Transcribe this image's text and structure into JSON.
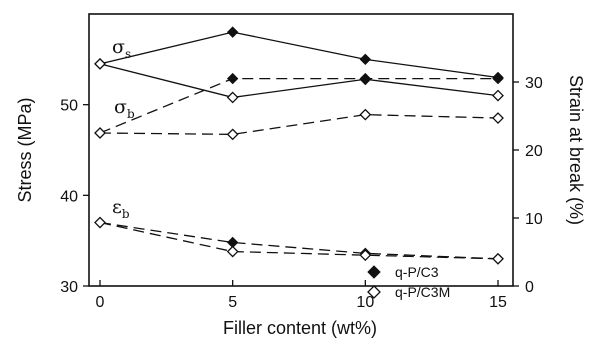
{
  "chart_data": {
    "type": "line",
    "xlabel": "Filler content  (wt%)",
    "ylabel_left": "Stress (MPa)",
    "ylabel_right": "Strain  at  break (%)",
    "x": [
      0,
      5,
      10,
      15
    ],
    "xlim": [
      0,
      15
    ],
    "x_ticks": [
      "0",
      "5",
      "10",
      "15"
    ],
    "ylim_left": [
      30,
      60
    ],
    "y_ticks_left": [
      "30",
      "40",
      "50"
    ],
    "ylim_right": [
      0,
      40
    ],
    "y_ticks_right": [
      "0",
      "10",
      "20",
      "30"
    ],
    "grid": false,
    "legend_position": "right, middle",
    "legend": [
      "q-P/C3",
      "q-P/C3M"
    ],
    "annotations": [
      {
        "symbol": "σ",
        "sub": "s"
      },
      {
        "symbol": "σ",
        "sub": "b"
      },
      {
        "symbol": "ε",
        "sub": "b"
      }
    ],
    "series": [
      {
        "group": "σs",
        "legend": "q-P/C3",
        "axis": "left",
        "style": "solid",
        "marker": "filled-diamond",
        "values": [
          54.5,
          58.0,
          55.0,
          53.0
        ]
      },
      {
        "group": "σs",
        "legend": "q-P/C3M",
        "axis": "left",
        "style": "solid",
        "marker": "open-diamond",
        "values": [
          54.5,
          50.8,
          52.8,
          51.0
        ]
      },
      {
        "group": "σb",
        "legend": "q-P/C3",
        "axis": "right",
        "style": "dashed",
        "marker": "filled-diamond",
        "values": [
          22.5,
          30.5,
          30.5,
          30.5
        ]
      },
      {
        "group": "σb",
        "legend": "q-P/C3M",
        "axis": "right",
        "style": "dashed",
        "marker": "open-diamond",
        "values": [
          22.5,
          22.3,
          25.2,
          24.7
        ]
      },
      {
        "group": "εb",
        "legend": "q-P/C3",
        "axis": "left",
        "style": "dashed",
        "marker": "filled-diamond",
        "values": [
          37.0,
          34.8,
          33.6,
          33.0
        ]
      },
      {
        "group": "εb",
        "legend": "q-P/C3M",
        "axis": "left",
        "style": "dashed",
        "marker": "open-diamond",
        "values": [
          37.0,
          33.8,
          33.4,
          33.0
        ]
      }
    ]
  }
}
